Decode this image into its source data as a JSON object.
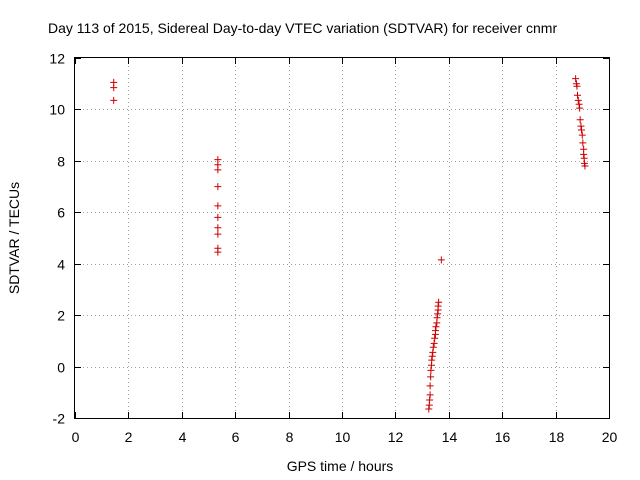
{
  "chart_data": {
    "type": "scatter",
    "title": "Day 113 of 2015, Sidereal Day-to-day VTEC variation (SDTVAR) for receiver cnmr",
    "xlabel": "GPS time / hours",
    "ylabel": "SDTVAR / TECUs",
    "xlim": [
      0,
      20
    ],
    "ylim": [
      -2,
      12
    ],
    "x_ticks": [
      0,
      2,
      4,
      6,
      8,
      10,
      12,
      14,
      16,
      18,
      20
    ],
    "y_ticks": [
      -2,
      0,
      2,
      4,
      6,
      8,
      10,
      12
    ],
    "grid": true,
    "marker": "+",
    "marker_color": "#cc0000",
    "series": [
      {
        "name": "SDTVAR",
        "points": [
          [
            1.45,
            11.05
          ],
          [
            1.45,
            10.85
          ],
          [
            1.45,
            10.35
          ],
          [
            5.35,
            8.05
          ],
          [
            5.35,
            7.85
          ],
          [
            5.35,
            7.65
          ],
          [
            5.35,
            7.0
          ],
          [
            5.35,
            6.25
          ],
          [
            5.35,
            5.8
          ],
          [
            5.35,
            5.4
          ],
          [
            5.35,
            5.15
          ],
          [
            5.35,
            4.6
          ],
          [
            5.35,
            4.45
          ],
          [
            13.25,
            -1.65
          ],
          [
            13.27,
            -1.5
          ],
          [
            13.28,
            -1.3
          ],
          [
            13.3,
            -1.1
          ],
          [
            13.3,
            -0.75
          ],
          [
            13.32,
            -0.4
          ],
          [
            13.33,
            -0.15
          ],
          [
            13.35,
            0.05
          ],
          [
            13.36,
            0.25
          ],
          [
            13.38,
            0.4
          ],
          [
            13.4,
            0.55
          ],
          [
            13.42,
            0.75
          ],
          [
            13.45,
            0.9
          ],
          [
            13.47,
            1.1
          ],
          [
            13.5,
            1.25
          ],
          [
            13.5,
            1.4
          ],
          [
            13.52,
            1.55
          ],
          [
            13.55,
            1.7
          ],
          [
            13.56,
            1.9
          ],
          [
            13.58,
            2.05
          ],
          [
            13.6,
            2.2
          ],
          [
            13.6,
            2.35
          ],
          [
            13.62,
            2.5
          ],
          [
            13.72,
            4.15
          ],
          [
            18.75,
            11.2
          ],
          [
            18.78,
            11.0
          ],
          [
            18.8,
            10.9
          ],
          [
            18.82,
            10.55
          ],
          [
            18.85,
            10.35
          ],
          [
            18.88,
            10.2
          ],
          [
            18.9,
            10.05
          ],
          [
            18.92,
            9.6
          ],
          [
            18.95,
            9.35
          ],
          [
            18.97,
            9.2
          ],
          [
            19.0,
            9.0
          ],
          [
            19.02,
            8.7
          ],
          [
            19.05,
            8.45
          ],
          [
            19.05,
            8.25
          ],
          [
            19.07,
            8.1
          ],
          [
            19.08,
            7.9
          ],
          [
            19.1,
            7.8
          ]
        ]
      }
    ]
  }
}
